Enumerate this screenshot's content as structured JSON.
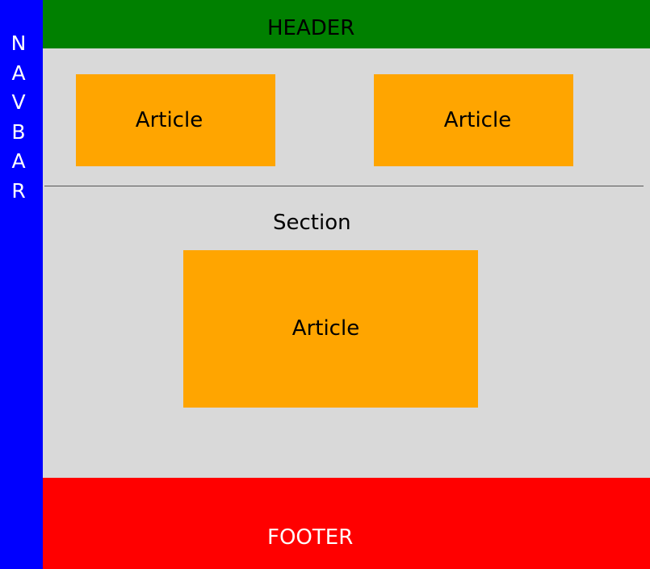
{
  "navbar": {
    "letters": [
      "N",
      "A",
      "V",
      "B",
      "A",
      "R"
    ],
    "color": "#0000ff"
  },
  "header": {
    "label": "HEADER",
    "color": "#008000"
  },
  "top_articles": [
    {
      "label": "Article"
    },
    {
      "label": "Article"
    }
  ],
  "section": {
    "label": "Section",
    "article": {
      "label": "Article"
    }
  },
  "article_color": "#ffa500",
  "background_color": "#d9d9d9",
  "footer": {
    "label": "FOOTER",
    "color": "#ff0000"
  }
}
